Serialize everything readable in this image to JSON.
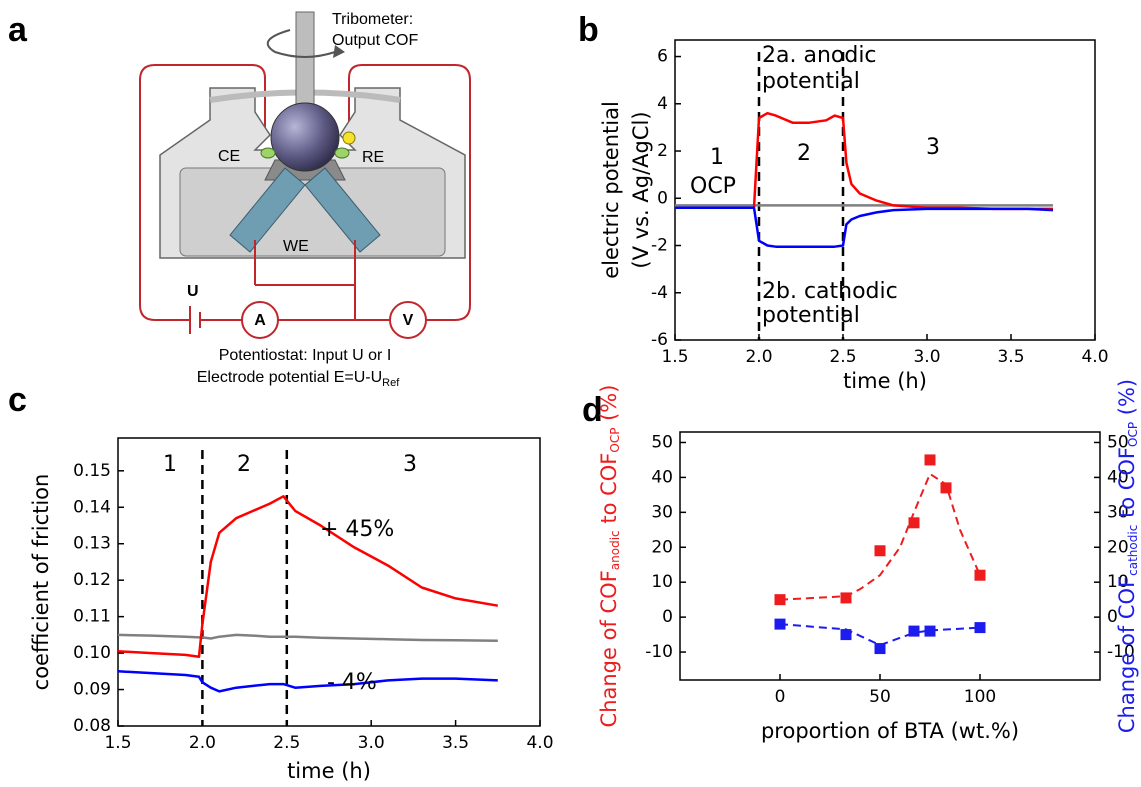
{
  "diagram": {
    "panel_label": "a",
    "tribometer": [
      "Tribometer:",
      "Output COF"
    ],
    "ce": "CE",
    "re": "RE",
    "we": "WE",
    "u": "U",
    "ammeter": "A",
    "voltmeter": "V",
    "potentiostat": "Potentiostat: Input U or I",
    "electrode_potential": "Electrode potential E=U-U",
    "ref": "Ref"
  },
  "chart_data": [
    {
      "type": "line",
      "panel_label": "b",
      "xlabel": "time (h)",
      "ylabel": [
        "electric potential",
        "(V vs. Ag/AgCl)"
      ],
      "x": [
        1.5,
        1.6,
        1.7,
        1.8,
        1.9,
        1.97,
        2.0,
        2.05,
        2.1,
        2.2,
        2.3,
        2.4,
        2.45,
        2.5,
        2.52,
        2.55,
        2.6,
        2.7,
        2.8,
        3.0,
        3.2,
        3.4,
        3.6,
        3.75
      ],
      "series": [
        {
          "color": "#ff0000",
          "values": [
            -0.4,
            -0.4,
            -0.4,
            -0.4,
            -0.4,
            -0.4,
            3.4,
            3.6,
            3.5,
            3.2,
            3.2,
            3.3,
            3.5,
            3.4,
            1.5,
            0.6,
            0.2,
            -0.1,
            -0.3,
            -0.4,
            -0.4,
            -0.45,
            -0.45,
            -0.45
          ]
        },
        {
          "color": "#0000ff",
          "values": [
            -0.4,
            -0.4,
            -0.4,
            -0.4,
            -0.4,
            -0.4,
            -1.8,
            -2.0,
            -2.05,
            -2.05,
            -2.05,
            -2.05,
            -2.05,
            -2.0,
            -1.1,
            -0.9,
            -0.75,
            -0.6,
            -0.5,
            -0.45,
            -0.45,
            -0.45,
            -0.45,
            -0.5
          ]
        },
        {
          "color": "#808080",
          "values": [
            -0.3,
            -0.3,
            -0.3,
            -0.3,
            -0.3,
            -0.3,
            -0.3,
            -0.3,
            -0.3,
            -0.3,
            -0.3,
            -0.3,
            -0.3,
            -0.3,
            -0.3,
            -0.3,
            -0.3,
            -0.3,
            -0.3,
            -0.3,
            -0.3,
            -0.3,
            -0.3,
            -0.3
          ]
        }
      ],
      "xlim": [
        1.5,
        4
      ],
      "ylim": [
        -6,
        6.7
      ],
      "xticks": [
        1.5,
        {
          "value": 2,
          "label": "2.0"
        },
        2.5,
        {
          "value": 3,
          "label": "3.0"
        },
        3.5,
        {
          "value": 4,
          "label": "4.0"
        }
      ],
      "yticks": [
        -6,
        -4,
        -2,
        0,
        2,
        4,
        6
      ],
      "vlines": [
        2,
        2.5
      ],
      "annotations": [
        "2a. anodic",
        "potential",
        "2b. cathodic",
        "potential",
        "1",
        "2",
        "3",
        "OCP"
      ],
      "annotation_colors": [
        "#ff0000",
        "#ff0000",
        "#0000ff",
        "#0000ff",
        "#000000",
        "#000000",
        "#000000",
        "#808080"
      ]
    },
    {
      "type": "line",
      "panel_label": "c",
      "xlabel": "time (h)",
      "ylabel": [
        "coefficient of friction"
      ],
      "x": [
        1.5,
        1.7,
        1.9,
        1.98,
        2.0,
        2.05,
        2.1,
        2.2,
        2.3,
        2.4,
        2.48,
        2.55,
        2.7,
        2.9,
        3.1,
        3.3,
        3.5,
        3.75
      ],
      "series": [
        {
          "color": "#ff0000",
          "values": [
            0.1005,
            0.1,
            0.0995,
            0.099,
            0.108,
            0.125,
            0.133,
            0.137,
            0.139,
            0.141,
            0.143,
            0.139,
            0.135,
            0.129,
            0.124,
            0.118,
            0.115,
            0.113
          ]
        },
        {
          "color": "#0000ff",
          "values": [
            0.095,
            0.0945,
            0.094,
            0.0935,
            0.092,
            0.0905,
            0.0895,
            0.0905,
            0.091,
            0.0915,
            0.0915,
            0.0905,
            0.091,
            0.0915,
            0.0925,
            0.093,
            0.093,
            0.0925
          ]
        },
        {
          "color": "#808080",
          "values": [
            0.105,
            0.1048,
            0.1045,
            0.1043,
            0.1043,
            0.104,
            0.1045,
            0.105,
            0.1048,
            0.1045,
            0.1045,
            0.1045,
            0.1042,
            0.104,
            0.1038,
            0.1036,
            0.1035,
            0.1034
          ]
        }
      ],
      "xlim": [
        1.5,
        4
      ],
      "ylim": [
        0.08,
        0.159
      ],
      "xticks": [
        1.5,
        {
          "value": 2,
          "label": "2.0"
        },
        2.5,
        {
          "value": 3,
          "label": "3.0"
        },
        3.5,
        {
          "value": 4,
          "label": "4.0"
        }
      ],
      "yticks": [
        0.08,
        0.09,
        {
          "value": 0.1,
          "label": "0.10"
        },
        0.11,
        0.12,
        0.13,
        0.14,
        0.15
      ],
      "vlines": [
        2,
        2.5
      ],
      "annotations": [
        "1",
        "2",
        "3",
        "+ 45%",
        "- 4%"
      ],
      "annotation_colors": [
        "#000000",
        "#000000",
        "#000000",
        "#000000",
        "#000000"
      ]
    },
    {
      "type": "scatter",
      "panel_label": "d",
      "xlabel": "proportion of BTA (wt.%)",
      "ylabel": {
        "main": "Change of COF",
        "sub": "anodic",
        "mid": " to COF",
        "sub2": "OCP",
        "end": " (%)"
      },
      "y2label": {
        "main": "Change of COF",
        "sub": "cathodic",
        "mid": " to COF",
        "sub2": "OCP",
        "end": " (%)"
      },
      "xlim": [
        -50,
        160
      ],
      "ylim": [
        -18,
        53
      ],
      "y2lim": [
        -18,
        53
      ],
      "xticks": [
        0,
        50,
        100
      ],
      "yticks": [
        -10,
        0,
        10,
        20,
        30,
        40,
        50
      ],
      "y2ticks": [
        -10,
        0,
        10,
        20,
        30,
        40,
        50
      ],
      "series": [
        {
          "color": "#ee1c1c",
          "x": [
            0,
            33,
            50,
            67,
            75,
            83,
            100
          ],
          "values": [
            5,
            5.5,
            19,
            27,
            45,
            37,
            12
          ]
        },
        {
          "color": "#1c1cee",
          "axis": "y2",
          "x": [
            0,
            33,
            50,
            67,
            75,
            100
          ],
          "values": [
            -2,
            -5,
            -9,
            -4,
            -4,
            -3
          ]
        }
      ],
      "fits": [
        {
          "color": "#ee1c1c",
          "x": [
            0,
            33,
            40,
            50,
            60,
            67,
            75,
            83,
            90,
            100
          ],
          "values": [
            5,
            6,
            8,
            12,
            20,
            30,
            41,
            38,
            25,
            12
          ]
        },
        {
          "color": "#1c1cee",
          "axis": "y2",
          "x": [
            0,
            33,
            50,
            67,
            75,
            100
          ],
          "values": [
            -2,
            -3.5,
            -8,
            -4.5,
            -3.8,
            -3
          ]
        }
      ]
    }
  ]
}
